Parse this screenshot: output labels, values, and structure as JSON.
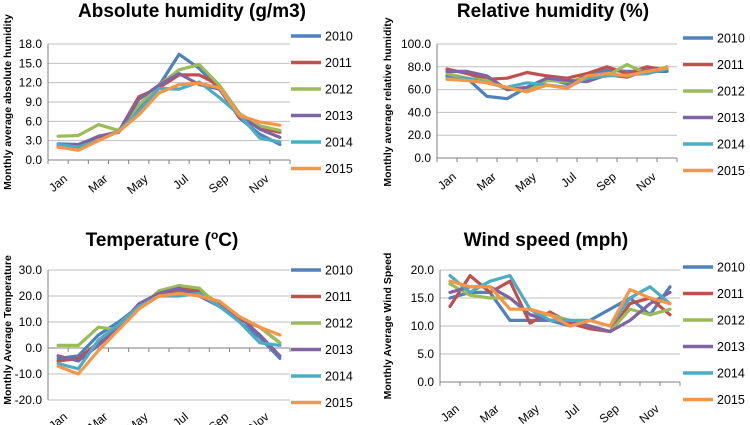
{
  "colors": {
    "2010": "#4f81bd",
    "2011": "#c0504d",
    "2012": "#9bbb59",
    "2013": "#8064a2",
    "2014": "#4bacc6",
    "2015": "#f79646"
  },
  "chart_data": [
    {
      "type": "line",
      "title": "Absolute humidity (g/m3)",
      "ylabel": "Monthly average absolute humidity",
      "xlabel": "",
      "categories": [
        "Jan",
        "Feb",
        "Mar",
        "Apr",
        "May",
        "Jun",
        "Jul",
        "Aug",
        "Sep",
        "Oct",
        "Nov",
        "Dec"
      ],
      "xtick_labels": [
        "Jan",
        "Mar",
        "May",
        "Jul",
        "Sep",
        "Nov"
      ],
      "ylim": [
        0,
        18
      ],
      "yticks": [
        "0.0",
        "3.0",
        "6.0",
        "9.0",
        "12.0",
        "15.0",
        "18.0"
      ],
      "legend_position": "right",
      "series": [
        {
          "name": "2010",
          "values": [
            2.5,
            2.4,
            3.6,
            4.3,
            8.0,
            11.5,
            16.4,
            14.2,
            11.0,
            6.5,
            4.0,
            2.4
          ]
        },
        {
          "name": "2011",
          "values": [
            2.0,
            2.3,
            3.6,
            4.4,
            9.8,
            11.2,
            13.2,
            13.2,
            11.6,
            6.6,
            5.0,
            4.3
          ]
        },
        {
          "name": "2012",
          "values": [
            3.7,
            3.8,
            5.5,
            4.6,
            8.5,
            11.6,
            14.0,
            14.8,
            11.6,
            7.2,
            5.3,
            4.6
          ]
        },
        {
          "name": "2013",
          "values": [
            2.3,
            2.3,
            3.7,
            4.3,
            9.4,
            11.6,
            13.4,
            11.7,
            11.0,
            6.9,
            4.8,
            3.5
          ]
        },
        {
          "name": "2014",
          "values": [
            2.4,
            2.0,
            3.0,
            4.5,
            7.5,
            11.1,
            11.0,
            12.1,
            9.7,
            7.0,
            3.4,
            2.8
          ]
        },
        {
          "name": "2015",
          "values": [
            2.0,
            1.5,
            3.0,
            4.4,
            7.0,
            10.4,
            11.7,
            11.9,
            11.2,
            6.9,
            5.9,
            5.4
          ]
        }
      ]
    },
    {
      "type": "line",
      "title": "Relative humidity (%)",
      "ylabel": "Monthly average relative humidity",
      "xlabel": "",
      "categories": [
        "Jan",
        "Feb",
        "Mar",
        "Apr",
        "May",
        "Jun",
        "Jul",
        "Aug",
        "Sep",
        "Oct",
        "Nov",
        "Dec"
      ],
      "xtick_labels": [
        "Jan",
        "Mar",
        "May",
        "Jul",
        "Sep",
        "Nov"
      ],
      "ylim": [
        0,
        100
      ],
      "yticks": [
        "0.0",
        "20.0",
        "40.0",
        "60.0",
        "80.0",
        "100.0"
      ],
      "legend_position": "right",
      "series": [
        {
          "name": "2010",
          "values": [
            72,
            70,
            54,
            52,
            62,
            70,
            65,
            72,
            77,
            76,
            76,
            76
          ]
        },
        {
          "name": "2011",
          "values": [
            78,
            74,
            69,
            70,
            75,
            72,
            70,
            74,
            80,
            74,
            80,
            77
          ]
        },
        {
          "name": "2012",
          "values": [
            74,
            70,
            68,
            60,
            60,
            68,
            67,
            70,
            72,
            82,
            74,
            80
          ]
        },
        {
          "name": "2013",
          "values": [
            76,
            76,
            72,
            60,
            62,
            70,
            68,
            67,
            73,
            71,
            77,
            78
          ]
        },
        {
          "name": "2014",
          "values": [
            70,
            70,
            66,
            62,
            66,
            64,
            62,
            70,
            72,
            73,
            74,
            78
          ]
        },
        {
          "name": "2015",
          "values": [
            69,
            68,
            66,
            62,
            58,
            64,
            61,
            72,
            74,
            72,
            76,
            79
          ]
        }
      ]
    },
    {
      "type": "line",
      "title": "Temperature (oC)",
      "ylabel": "Monthly Average Temperature",
      "xlabel": "",
      "categories": [
        "Jan",
        "Feb",
        "Mar",
        "Apr",
        "May",
        "Jun",
        "Jul",
        "Aug",
        "Sep",
        "Oct",
        "Nov",
        "Dec"
      ],
      "xtick_labels": [
        "Jan",
        "Mar",
        "May",
        "Jul",
        "Sep",
        "Nov"
      ],
      "ylim": [
        -20,
        30
      ],
      "yticks": [
        "-20.0",
        "-10.0",
        "0.0",
        "10.0",
        "20.0",
        "30.0"
      ],
      "legend_position": "right",
      "series": [
        {
          "name": "2010",
          "values": [
            -4,
            -3,
            5,
            10,
            16,
            20,
            22,
            21,
            17,
            10,
            4,
            -4
          ]
        },
        {
          "name": "2011",
          "values": [
            -5,
            -4,
            2,
            8,
            16,
            20,
            23,
            22,
            17,
            11,
            8,
            2
          ]
        },
        {
          "name": "2012",
          "values": [
            1,
            1,
            8,
            7,
            15,
            22,
            24,
            23,
            16,
            12,
            8,
            2
          ]
        },
        {
          "name": "2013",
          "values": [
            -3,
            -5,
            1,
            8,
            17,
            21,
            23,
            20,
            16,
            12,
            5,
            -3
          ]
        },
        {
          "name": "2014",
          "values": [
            -6,
            -8,
            3,
            9,
            16,
            20,
            20,
            21,
            16,
            10,
            2,
            1
          ]
        },
        {
          "name": "2015",
          "values": [
            -7,
            -10,
            -1,
            7,
            15,
            20,
            21,
            20,
            18,
            12,
            8,
            5
          ]
        }
      ]
    },
    {
      "type": "line",
      "title": "Wind speed (mph)",
      "ylabel": "Monthly Average Wind Speed",
      "xlabel": "",
      "categories": [
        "Jan",
        "Feb",
        "Mar",
        "Apr",
        "May",
        "Jun",
        "Jul",
        "Aug",
        "Sep",
        "Oct",
        "Nov",
        "Dec"
      ],
      "xtick_labels": [
        "Jan",
        "Mar",
        "May",
        "Jul",
        "Sep",
        "Nov"
      ],
      "ylim": [
        0,
        20
      ],
      "yticks": [
        "0.0",
        "5.0",
        "10.0",
        "15.0",
        "20.0"
      ],
      "legend_position": "right",
      "series": [
        {
          "name": "2010",
          "values": [
            15,
            16,
            16,
            11,
            11,
            11,
            10,
            11,
            13,
            15,
            12,
            17
          ]
        },
        {
          "name": "2011",
          "values": [
            13.5,
            19,
            16,
            18,
            10.5,
            12.5,
            10.5,
            9.5,
            9,
            14,
            15,
            12
          ]
        },
        {
          "name": "2012",
          "values": [
            17.5,
            15.5,
            15,
            15,
            12,
            12,
            11,
            10,
            9,
            13,
            12,
            13
          ]
        },
        {
          "name": "2013",
          "values": [
            16,
            17,
            17,
            15,
            12,
            11,
            11,
            10,
            9,
            11,
            14,
            16
          ]
        },
        {
          "name": "2014",
          "values": [
            19,
            16,
            18,
            19,
            13,
            11,
            11,
            11,
            10,
            15,
            17,
            14
          ]
        },
        {
          "name": "2015",
          "values": [
            18,
            17,
            17,
            13,
            13,
            12,
            10,
            11,
            10,
            16.5,
            15,
            14
          ]
        }
      ]
    }
  ]
}
